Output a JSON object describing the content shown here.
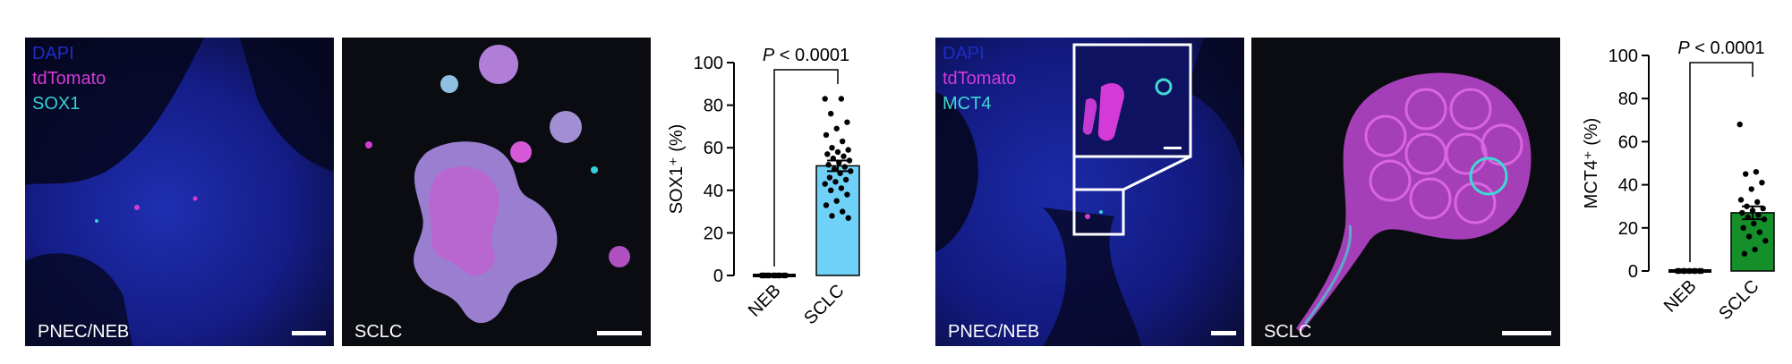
{
  "colors": {
    "dapi": "#1d2cc8",
    "tdtomato": "#d43ad6",
    "sox1": "#35d0d8",
    "mct4": "#3fd8d2",
    "sox1_bar": "#6fd1f7",
    "mct4_bar": "#148f2a"
  },
  "panels": [
    {
      "label": "PNEC/NEB",
      "legend": [
        "DAPI",
        "tdTomato",
        "SOX1"
      ]
    },
    {
      "label": "SCLC"
    },
    {
      "label": "PNEC/NEB",
      "legend": [
        "DAPI",
        "tdTomato",
        "MCT4"
      ]
    },
    {
      "label": "SCLC"
    }
  ],
  "chart_data": [
    {
      "type": "bar",
      "categories": [
        "NEB",
        "SCLC"
      ],
      "values": [
        0,
        51.5
      ],
      "sem": [
        0,
        2.5
      ],
      "points": [
        [
          0,
          0,
          0,
          0,
          0,
          0,
          0,
          0,
          0,
          0,
          0,
          0,
          0,
          0,
          0,
          0
        ],
        [
          83,
          83,
          76,
          72,
          69,
          66,
          63,
          60,
          59,
          58,
          57,
          56,
          55,
          54,
          53,
          52,
          51,
          50,
          49,
          48,
          46,
          45,
          44,
          43,
          41,
          40,
          38,
          35,
          33,
          30,
          28,
          27
        ]
      ],
      "ylabel": "SOX1⁺ (%)",
      "ylim": [
        0,
        100
      ],
      "yticks": [
        0,
        20,
        40,
        60,
        80,
        100
      ],
      "annotation": "P < 0.0001",
      "bar_colors": [
        "#000000",
        "#6fd1f7"
      ]
    },
    {
      "type": "bar",
      "categories": [
        "NEB",
        "SCLC"
      ],
      "values": [
        0,
        27
      ],
      "sem": [
        0,
        3
      ],
      "points": [
        [
          0,
          0,
          0,
          0,
          0,
          0,
          0,
          0,
          0,
          0,
          0,
          0,
          0,
          0
        ],
        [
          68,
          46,
          45,
          41,
          38,
          33,
          32,
          30,
          29,
          28,
          27,
          26,
          25,
          24,
          22,
          20,
          18,
          16,
          14,
          10,
          8
        ]
      ],
      "ylabel": "MCT4⁺ (%)",
      "ylim": [
        0,
        100
      ],
      "yticks": [
        0,
        20,
        40,
        60,
        80,
        100
      ],
      "annotation": "P < 0.0001",
      "bar_colors": [
        "#000000",
        "#148f2a"
      ]
    }
  ]
}
